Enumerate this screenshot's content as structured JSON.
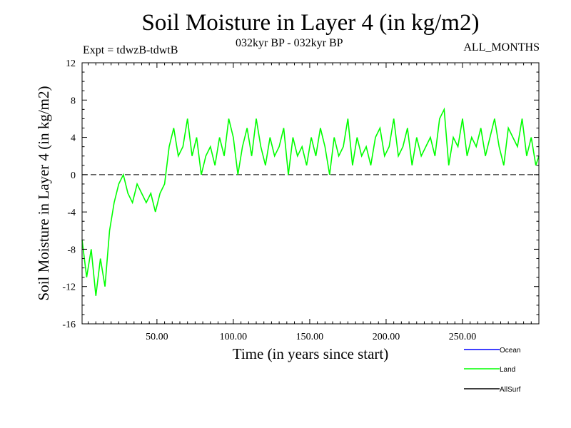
{
  "header": {
    "title": "Soil Moisture in Layer 4 (in kg/m2)",
    "subtitle": "032kyr BP - 032kyr BP",
    "experiment": "Expt = tdwzB-tdwtB",
    "months": "ALL_MONTHS"
  },
  "colors": {
    "land": "#00ff00",
    "ocean": "#0000ff",
    "allsurf": "#000000"
  },
  "chart_data": {
    "type": "line",
    "title": "Soil Moisture in Layer 4 (in kg/m2)",
    "xlabel": "Time (in years since start)",
    "ylabel": "Soil Moisture in Layer 4 (in kg/m2)",
    "xlim": [
      1,
      300
    ],
    "ylim": [
      -16,
      12
    ],
    "x_ticks": [
      50,
      100,
      150,
      200,
      250
    ],
    "x_tick_labels": [
      "50.00",
      "100.00",
      "150.00",
      "200.00",
      "250.00"
    ],
    "y_ticks": [
      -16,
      -12,
      -8,
      -4,
      0,
      4,
      8,
      12
    ],
    "y_tick_labels": [
      "-16",
      "-12",
      "-8",
      "-4",
      "0",
      "4",
      "8",
      "12"
    ],
    "reference_line": 0,
    "legend": [
      {
        "name": "Ocean",
        "color": "#0000ff"
      },
      {
        "name": "Land",
        "color": "#00ff00"
      },
      {
        "name": "AllSurf",
        "color": "#000000"
      }
    ],
    "series": [
      {
        "name": "Land",
        "color": "#00ff00",
        "x": [
          1,
          4,
          7,
          10,
          13,
          16,
          19,
          22,
          25,
          28,
          31,
          34,
          37,
          40,
          43,
          46,
          49,
          52,
          55,
          58,
          61,
          64,
          67,
          70,
          73,
          76,
          79,
          82,
          85,
          88,
          91,
          94,
          97,
          100,
          103,
          106,
          109,
          112,
          115,
          118,
          121,
          124,
          127,
          130,
          133,
          136,
          139,
          142,
          145,
          148,
          151,
          154,
          157,
          160,
          163,
          166,
          169,
          172,
          175,
          178,
          181,
          184,
          187,
          190,
          193,
          196,
          199,
          202,
          205,
          208,
          211,
          214,
          217,
          220,
          223,
          226,
          229,
          232,
          235,
          238,
          241,
          244,
          247,
          250,
          253,
          256,
          259,
          262,
          265,
          268,
          271,
          274,
          277,
          280,
          283,
          286,
          289,
          292,
          295,
          298,
          300
        ],
        "values": [
          -7,
          -11,
          -8,
          -13,
          -9,
          -12,
          -6,
          -3,
          -1,
          0,
          -2,
          -3,
          -1,
          -2,
          -3,
          -2,
          -4,
          -2,
          -1,
          3,
          5,
          2,
          3,
          6,
          2,
          4,
          0,
          2,
          3,
          1,
          4,
          2,
          6,
          4,
          0,
          3,
          5,
          2,
          6,
          3,
          1,
          4,
          2,
          3,
          5,
          0,
          4,
          2,
          3,
          1,
          4,
          2,
          5,
          3,
          0,
          4,
          2,
          3,
          6,
          1,
          4,
          2,
          3,
          1,
          4,
          5,
          2,
          3,
          6,
          2,
          3,
          5,
          1,
          4,
          2,
          3,
          4,
          2,
          6,
          7,
          1,
          4,
          3,
          6,
          2,
          4,
          3,
          5,
          2,
          4,
          6,
          3,
          1,
          5,
          4,
          3,
          6,
          2,
          4,
          1,
          2
        ]
      }
    ]
  }
}
